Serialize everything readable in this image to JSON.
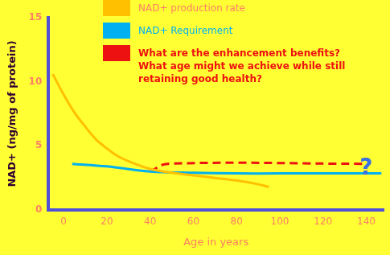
{
  "chart_data": {
    "type": "line",
    "x_label": "Age in years",
    "y_label": "NAD+ (ng/mg of protein)",
    "xlim": [
      -7,
      148
    ],
    "xticks": [
      0,
      20,
      40,
      60,
      80,
      100,
      120,
      140
    ],
    "ylim": [
      0,
      15
    ],
    "yticks": [
      0,
      5,
      10,
      15
    ],
    "grid": false,
    "legend": "top",
    "series": [
      {
        "name": "NAD+ production rate",
        "color": "#ffc000",
        "line_style": "solid",
        "x": [
          -5,
          0,
          5,
          10,
          15,
          20,
          25,
          30,
          40,
          50,
          60,
          70,
          80,
          90,
          95
        ],
        "values": [
          10.6,
          9.0,
          7.6,
          6.5,
          5.5,
          4.8,
          4.2,
          3.8,
          3.2,
          2.9,
          2.7,
          2.5,
          2.3,
          2.0,
          1.8
        ]
      },
      {
        "name": "NAD+ Requirement",
        "color": "#00b0f0",
        "line_style": "solid",
        "x": [
          4,
          20,
          40,
          60,
          80,
          100,
          120,
          147
        ],
        "values": [
          3.6,
          3.4,
          3.0,
          2.9,
          2.85,
          2.85,
          2.85,
          2.85
        ]
      },
      {
        "name": "What are the enhancement benefits?\nWhat age might we  achieve while still retaining good health?",
        "color": "#ee1111",
        "line_style": "dashed",
        "x": [
          40,
          48,
          140
        ],
        "values": [
          3.0,
          3.6,
          3.6
        ]
      }
    ],
    "annotations": [
      {
        "text": "?",
        "x": 140,
        "y": 3.2
      }
    ]
  }
}
